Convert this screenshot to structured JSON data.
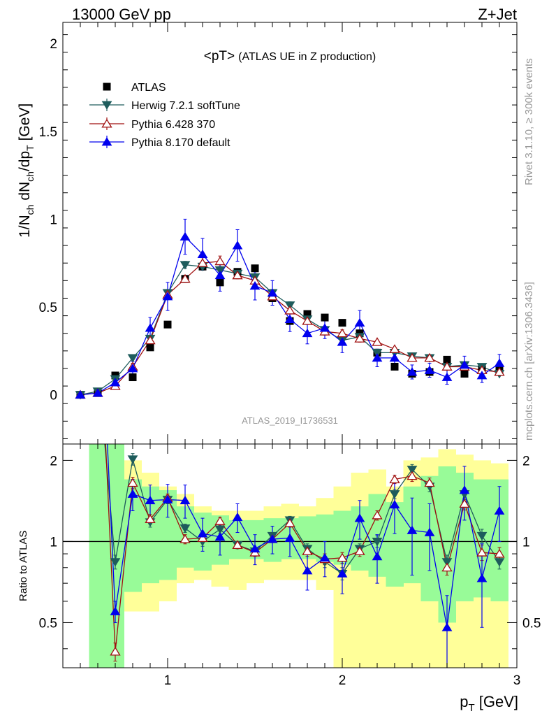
{
  "header": {
    "left": "13000 GeV pp",
    "right": "Z+Jet"
  },
  "side": {
    "rivet": "Rivet 3.1.10, ≥ 300k events",
    "mcplots": "mcplots.cern.ch [arXiv:1306.3436]"
  },
  "colors": {
    "atlas": "#000000",
    "herwig": "#1e5c5c",
    "pythia6": "#a01010",
    "pythia8": "#0000ee",
    "band_inner": "#98fb98",
    "band_outer": "#ffff99"
  },
  "chart_data": [
    {
      "type": "line",
      "title": "<pT> (ATLAS UE in Z production)",
      "title_main": "<pT>",
      "title_sub": "(ATLAS UE in Z production)",
      "ylabel": "1/N_ch dN_ch/dp_T [GeV]",
      "ylabel_parts": [
        "1/N",
        "ch",
        " dN",
        "ch",
        "/dp",
        "T",
        " [GeV]"
      ],
      "xlim": [
        0.4,
        3.0
      ],
      "ylim": [
        -0.28,
        2.12
      ],
      "x_ticks": [
        1,
        2,
        3
      ],
      "y_ticks": [
        0,
        0.5,
        1,
        1.5,
        2
      ],
      "y_tick_labels": [
        "0",
        "0.5",
        "1",
        "1.5",
        "2"
      ],
      "watermark": "ATLAS_2019_I1736531",
      "legend_position": "top-left",
      "x": [
        0.5,
        0.6,
        0.7,
        0.8,
        0.9,
        1.0,
        1.1,
        1.2,
        1.3,
        1.4,
        1.5,
        1.6,
        1.7,
        1.8,
        1.9,
        2.0,
        2.1,
        2.2,
        2.3,
        2.4,
        2.5,
        2.6,
        2.7,
        2.8,
        2.9
      ],
      "series": [
        {
          "name": "ATLAS",
          "marker": "square",
          "values": [
            0.0,
            0.01,
            0.11,
            0.1,
            0.27,
            0.4,
            0.66,
            0.73,
            0.64,
            0.7,
            0.72,
            0.55,
            0.42,
            0.46,
            0.44,
            0.41,
            0.35,
            0.24,
            0.16,
            0.12,
            0.13,
            0.2,
            0.12,
            0.15,
            0.14
          ],
          "errors": [
            0,
            0,
            0,
            0,
            0,
            0,
            0,
            0,
            0,
            0,
            0,
            0,
            0,
            0,
            0,
            0,
            0,
            0,
            0,
            0,
            0,
            0,
            0,
            0,
            0
          ]
        },
        {
          "name": "Herwig 7.2.1 softTune",
          "marker": "triangle-down",
          "values": [
            0.0,
            0.02,
            0.09,
            0.21,
            0.32,
            0.58,
            0.74,
            0.73,
            0.71,
            0.69,
            0.67,
            0.58,
            0.51,
            0.43,
            0.37,
            0.31,
            0.33,
            0.24,
            0.24,
            0.22,
            0.21,
            0.16,
            0.17,
            0.16,
            0.12
          ],
          "errors": [
            0,
            0.01,
            0.01,
            0.01,
            0.01,
            0.02,
            0.02,
            0.02,
            0.02,
            0.02,
            0.02,
            0.02,
            0.02,
            0.02,
            0.02,
            0.02,
            0.02,
            0.01,
            0.01,
            0.01,
            0.01,
            0.01,
            0.01,
            0.01,
            0.01
          ]
        },
        {
          "name": "Pythia 6.428 370",
          "marker": "triangle-up-open",
          "values": [
            0.0,
            0.01,
            0.05,
            0.16,
            0.31,
            0.57,
            0.66,
            0.75,
            0.76,
            0.68,
            0.65,
            0.56,
            0.48,
            0.42,
            0.36,
            0.35,
            0.32,
            0.3,
            0.26,
            0.21,
            0.21,
            0.16,
            0.16,
            0.14,
            0.13
          ],
          "errors": [
            0,
            0.01,
            0.01,
            0.02,
            0.02,
            0.02,
            0.02,
            0.03,
            0.03,
            0.02,
            0.02,
            0.02,
            0.02,
            0.02,
            0.02,
            0.02,
            0.02,
            0.01,
            0.01,
            0.01,
            0.01,
            0.01,
            0.01,
            0.01,
            0.01
          ]
        },
        {
          "name": "Pythia 8.170 default",
          "marker": "triangle-up",
          "values": [
            0.0,
            0.01,
            0.07,
            0.15,
            0.38,
            0.56,
            0.9,
            0.8,
            0.68,
            0.85,
            0.62,
            0.58,
            0.43,
            0.35,
            0.38,
            0.3,
            0.41,
            0.21,
            0.21,
            0.13,
            0.14,
            0.1,
            0.17,
            0.11,
            0.18
          ],
          "errors": [
            0,
            0.01,
            0.02,
            0.04,
            0.06,
            0.08,
            0.1,
            0.09,
            0.09,
            0.09,
            0.08,
            0.07,
            0.07,
            0.06,
            0.06,
            0.06,
            0.07,
            0.05,
            0.05,
            0.04,
            0.04,
            0.04,
            0.05,
            0.04,
            0.05
          ]
        }
      ]
    },
    {
      "type": "line",
      "title": "",
      "ylabel": "Ratio to ATLAS",
      "xlabel": "p_T [GeV]",
      "xlabel_main": "p",
      "xlabel_sub": "T",
      "xlabel_unit": " [GeV]",
      "xlim": [
        0.4,
        3.0
      ],
      "ylim": [
        0.34,
        2.3
      ],
      "log_y": true,
      "x_ticks": [
        1,
        2,
        3
      ],
      "x_tick_labels": [
        "1",
        "2",
        "3"
      ],
      "y_ticks": [
        0.5,
        1,
        2
      ],
      "y_tick_labels": [
        "0.5",
        "1",
        "2"
      ],
      "reference_line": 1,
      "band_edges": [
        0.55,
        0.65,
        0.75,
        0.85,
        0.95,
        1.05,
        1.15,
        1.25,
        1.35,
        1.45,
        1.55,
        1.65,
        1.75,
        1.85,
        1.95,
        2.05,
        2.15,
        2.25,
        2.35,
        2.45,
        2.55,
        2.65,
        2.75,
        2.85,
        2.95
      ],
      "band_inner_low": [
        0.34,
        0.34,
        0.65,
        0.7,
        0.72,
        0.8,
        0.78,
        0.82,
        0.86,
        0.86,
        0.84,
        0.86,
        0.86,
        0.84,
        0.82,
        0.78,
        0.74,
        0.68,
        0.7,
        0.6,
        0.5,
        0.6,
        0.62,
        0.6
      ],
      "band_inner_high": [
        2.3,
        2.3,
        1.7,
        1.6,
        1.55,
        1.35,
        1.28,
        1.25,
        1.2,
        1.2,
        1.22,
        1.22,
        1.24,
        1.26,
        1.3,
        1.35,
        1.5,
        1.4,
        1.6,
        1.75,
        1.9,
        1.8,
        1.7,
        1.7
      ],
      "band_outer_low": [
        0.34,
        0.34,
        0.55,
        0.55,
        0.6,
        0.7,
        0.72,
        0.68,
        0.66,
        0.7,
        0.72,
        0.72,
        0.72,
        0.66,
        0.34,
        0.34,
        0.34,
        0.34,
        0.34,
        0.34,
        0.34,
        0.34,
        0.34,
        0.34
      ],
      "band_outer_high": [
        2.3,
        2.3,
        2.0,
        1.8,
        1.6,
        1.5,
        1.35,
        1.3,
        1.3,
        1.3,
        1.35,
        1.38,
        1.35,
        1.45,
        1.6,
        1.8,
        1.85,
        1.6,
        2.0,
        2.05,
        2.2,
        2.1,
        2.0,
        1.95
      ],
      "series": [
        {
          "name": "Herwig 7.2.1 softTune",
          "x": [
            0.7,
            0.8,
            0.9,
            1.0,
            1.1,
            1.2,
            1.3,
            1.4,
            1.5,
            1.6,
            1.7,
            1.8,
            1.9,
            2.0,
            2.1,
            2.2,
            2.3,
            2.4,
            2.5,
            2.6,
            2.7,
            2.8,
            2.9
          ],
          "values": [
            0.84,
            2.02,
            1.18,
            1.43,
            1.12,
            1.0,
            1.11,
            0.97,
            0.92,
            1.05,
            1.2,
            0.94,
            0.84,
            0.76,
            0.94,
            1.0,
            1.5,
            1.85,
            1.6,
            0.84,
            1.5,
            1.05,
            0.84
          ],
          "errors": [
            0.05,
            0.1,
            0.05,
            0.05,
            0.04,
            0.04,
            0.04,
            0.03,
            0.03,
            0.03,
            0.04,
            0.04,
            0.04,
            0.04,
            0.04,
            0.05,
            0.06,
            0.08,
            0.07,
            0.05,
            0.07,
            0.06,
            0.05
          ],
          "off_chart_start": [
            0.64,
            2.4
          ]
        },
        {
          "name": "Pythia 6.428 370",
          "x": [
            0.7,
            0.8,
            0.9,
            1.0,
            1.1,
            1.2,
            1.3,
            1.4,
            1.5,
            1.6,
            1.7,
            1.8,
            1.9,
            2.0,
            2.1,
            2.2,
            2.3,
            2.4,
            2.5,
            2.6,
            2.7,
            2.8,
            2.9
          ],
          "values": [
            0.39,
            1.65,
            1.21,
            1.45,
            1.02,
            1.03,
            1.19,
            0.97,
            0.91,
            1.02,
            1.17,
            0.92,
            0.86,
            0.87,
            0.92,
            1.25,
            1.7,
            1.75,
            1.65,
            0.8,
            1.38,
            0.91,
            0.9
          ],
          "errors": [
            0.03,
            0.08,
            0.05,
            0.05,
            0.04,
            0.04,
            0.04,
            0.03,
            0.03,
            0.03,
            0.04,
            0.04,
            0.04,
            0.04,
            0.04,
            0.05,
            0.06,
            0.08,
            0.07,
            0.05,
            0.07,
            0.06,
            0.05
          ],
          "off_chart_start": [
            0.645,
            2.4
          ]
        },
        {
          "name": "Pythia 8.170 default",
          "x": [
            0.7,
            0.8,
            0.9,
            1.0,
            1.1,
            1.2,
            1.3,
            1.4,
            1.5,
            1.6,
            1.7,
            1.8,
            1.9,
            2.0,
            2.1,
            2.2,
            2.3,
            2.4,
            2.5,
            2.6,
            2.7,
            2.8,
            2.9
          ],
          "values": [
            0.55,
            1.5,
            1.42,
            1.43,
            1.42,
            1.07,
            1.04,
            1.23,
            0.94,
            1.02,
            1.03,
            0.78,
            0.87,
            0.76,
            1.22,
            0.88,
            1.37,
            1.1,
            1.08,
            0.48,
            1.55,
            0.73,
            1.3
          ],
          "errors": [
            0.05,
            0.2,
            0.2,
            0.2,
            0.2,
            0.15,
            0.15,
            0.15,
            0.12,
            0.12,
            0.15,
            0.12,
            0.13,
            0.12,
            0.2,
            0.18,
            0.3,
            0.35,
            0.3,
            0.15,
            0.35,
            0.25,
            0.3
          ],
          "off_chart_start": [
            0.655,
            2.4
          ]
        }
      ]
    }
  ]
}
